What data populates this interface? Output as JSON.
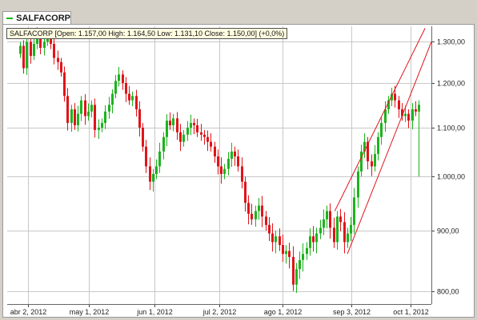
{
  "legend": {
    "label": "SALFACORP",
    "color": "#1db31d"
  },
  "info": {
    "text": "SALFACORP [Open: 1.157,00  High: 1.164,50  Low: 1.131,10  Close: 1.150,00] (+0,0%)"
  },
  "colors": {
    "up": "#1db31d",
    "down": "#e0141a",
    "trendline": "#e0141a",
    "grid": "#c8c8c8",
    "background": "#ffffff"
  },
  "chart_data": {
    "type": "candlestick",
    "title": "",
    "y_scale": "log",
    "ylim": [
      780,
      1340
    ],
    "y_ticks": [
      800,
      900,
      1000,
      1100,
      1200,
      1300
    ],
    "y_tick_labels": [
      "800,00",
      "900,00",
      "1.000,00",
      "1.100,00",
      "1.200,00",
      "1.300,00"
    ],
    "x_range": [
      "2012-03-23",
      "2012-10-11"
    ],
    "x_ticks": [
      "2012-04-02",
      "2012-05-01",
      "2012-06-01",
      "2012-07-02",
      "2012-08-01",
      "2012-09-03",
      "2012-10-01"
    ],
    "x_tick_labels": [
      "abr 2, 2012",
      "may 1, 2012",
      "jun 1, 2012",
      "jul 2, 2012",
      "ago 1, 2012",
      "sep 3, 2012",
      "oct 1, 2012"
    ],
    "grid": true,
    "series": [
      {
        "name": "SALFACORP",
        "close": [
          1290,
          1235,
          1300,
          1265,
          1295,
          1320,
          1285,
          1300,
          1310,
          1295,
          1260,
          1250,
          1225,
          1170,
          1110,
          1140,
          1105,
          1130,
          1160,
          1125,
          1135,
          1150,
          1095,
          1100,
          1110,
          1135,
          1150,
          1175,
          1205,
          1220,
          1200,
          1175,
          1160,
          1170,
          1140,
          1100,
          1060,
          1020,
          990,
          1005,
          1020,
          1050,
          1080,
          1115,
          1105,
          1120,
          1090,
          1070,
          1085,
          1100,
          1110,
          1105,
          1090,
          1085,
          1080,
          1070,
          1060,
          1040,
          1020,
          1005,
          1015,
          1035,
          1050,
          1040,
          1020,
          990,
          950,
          930,
          920,
          935,
          945,
          925,
          910,
          895,
          880,
          890,
          875,
          860,
          865,
          855,
          810,
          835,
          850,
          860,
          870,
          890,
          880,
          895,
          905,
          920,
          935,
          905,
          880,
          925,
          915,
          880,
          895,
          910,
          960,
          1010,
          1050,
          1070,
          1030,
          1020,
          1045,
          1080,
          1110,
          1140,
          1160,
          1175,
          1160,
          1140,
          1125,
          1130,
          1115,
          1140,
          1135,
          1150
        ]
      }
    ]
  }
}
